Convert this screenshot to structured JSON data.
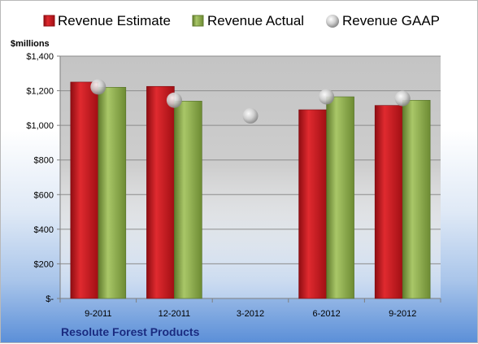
{
  "chart_data": {
    "type": "bar",
    "title": "",
    "unit_label": "$millions",
    "company": "Resolute Forest Products",
    "xlabel": "",
    "ylabel": "",
    "categories": [
      "9-2011",
      "12-2011",
      "3-2012",
      "6-2012",
      "9-2012"
    ],
    "ylim": [
      0,
      1400
    ],
    "yticks": [
      0,
      200,
      400,
      600,
      800,
      1000,
      1200,
      1400
    ],
    "ytick_labels": [
      "$-",
      "$200",
      "$400",
      "$600",
      "$800",
      "$1,000",
      "$1,200",
      "$1,400"
    ],
    "grid": true,
    "legend_position": "top",
    "series": [
      {
        "name": "Revenue Estimate",
        "kind": "bar",
        "color": "#c8151b",
        "values": [
          1250,
          1225,
          null,
          1090,
          1115
        ]
      },
      {
        "name": "Revenue Actual",
        "kind": "bar",
        "color": "#8aa84a",
        "values": [
          1220,
          1140,
          null,
          1165,
          1145
        ]
      },
      {
        "name": "Revenue GAAP",
        "kind": "marker",
        "color": "#c8c8c8",
        "values": [
          1222,
          1145,
          1055,
          1165,
          1155
        ]
      }
    ]
  }
}
